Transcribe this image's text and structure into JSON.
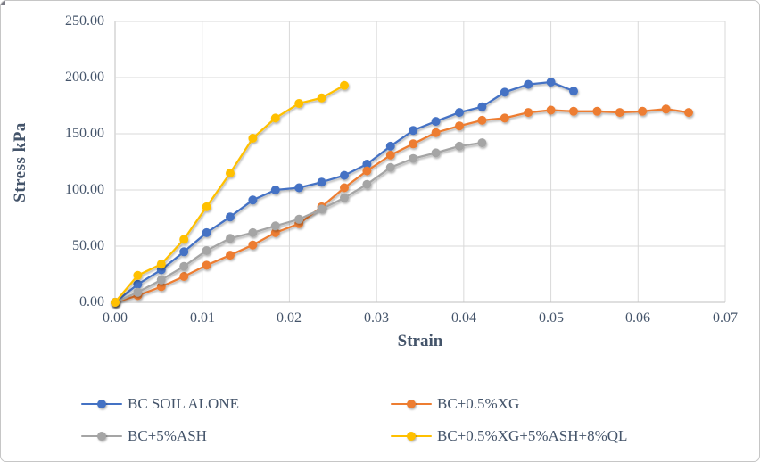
{
  "chart_data": {
    "type": "line",
    "title": "",
    "xlabel": "Strain",
    "ylabel": "Stress kPa",
    "xlim": [
      0,
      0.07
    ],
    "ylim": [
      0,
      250
    ],
    "grid": true,
    "legend_position": "bottom",
    "x_ticks": [
      "0.00",
      "0.01",
      "0.02",
      "0.03",
      "0.04",
      "0.05",
      "0.06",
      "0.07"
    ],
    "y_ticks": [
      "250.00",
      "200.00",
      "150.00",
      "100.00",
      "50.00",
      "0.00"
    ],
    "gridline_color": "#D9D9D9",
    "axis_line_color": "#BFBFBF",
    "text_color": "#44546A",
    "series": [
      {
        "name": "BC SOIL ALONE",
        "color": "#4472C4",
        "x": [
          0,
          0.0026,
          0.0053,
          0.0079,
          0.0105,
          0.0132,
          0.0158,
          0.0184,
          0.0211,
          0.0237,
          0.0263,
          0.0289,
          0.0316,
          0.0342,
          0.0368,
          0.0395,
          0.0421,
          0.0447,
          0.0474,
          0.05,
          0.0526
        ],
        "y": [
          0,
          16,
          29,
          45,
          62,
          76,
          91,
          100,
          102,
          107,
          113,
          123,
          139,
          153,
          161,
          169,
          174,
          187,
          194,
          196,
          188
        ]
      },
      {
        "name": "BC+0.5%XG",
        "color": "#ED7D31",
        "x": [
          0,
          0.0026,
          0.0053,
          0.0079,
          0.0105,
          0.0132,
          0.0158,
          0.0184,
          0.0211,
          0.0237,
          0.0263,
          0.0289,
          0.0316,
          0.0342,
          0.0368,
          0.0395,
          0.0421,
          0.0447,
          0.0474,
          0.05,
          0.0526,
          0.0553,
          0.0579,
          0.0605,
          0.0632,
          0.0658
        ],
        "y": [
          0,
          6,
          14,
          23,
          33,
          42,
          51,
          62,
          70,
          85,
          102,
          117,
          131,
          141,
          151,
          157,
          162,
          164,
          169,
          171,
          170,
          170,
          169,
          170,
          172,
          169
        ]
      },
      {
        "name": "BC+5%ASH",
        "color": "#A5A5A5",
        "x": [
          0,
          0.0026,
          0.0053,
          0.0079,
          0.0105,
          0.0132,
          0.0158,
          0.0184,
          0.0211,
          0.0237,
          0.0263,
          0.0289,
          0.0316,
          0.0342,
          0.0368,
          0.0395,
          0.0421
        ],
        "y": [
          0,
          9,
          20,
          32,
          46,
          57,
          62,
          68,
          74,
          83,
          93,
          105,
          120,
          128,
          133,
          139,
          142
        ]
      },
      {
        "name": "BC+0.5%XG+5%ASH+8%QL",
        "color": "#FFC000",
        "x": [
          0,
          0.0026,
          0.0053,
          0.0079,
          0.0105,
          0.0132,
          0.0158,
          0.0184,
          0.0211,
          0.0237,
          0.0263
        ],
        "y": [
          0,
          24,
          34,
          56,
          85,
          115,
          146,
          164,
          177,
          182,
          193
        ]
      }
    ]
  }
}
